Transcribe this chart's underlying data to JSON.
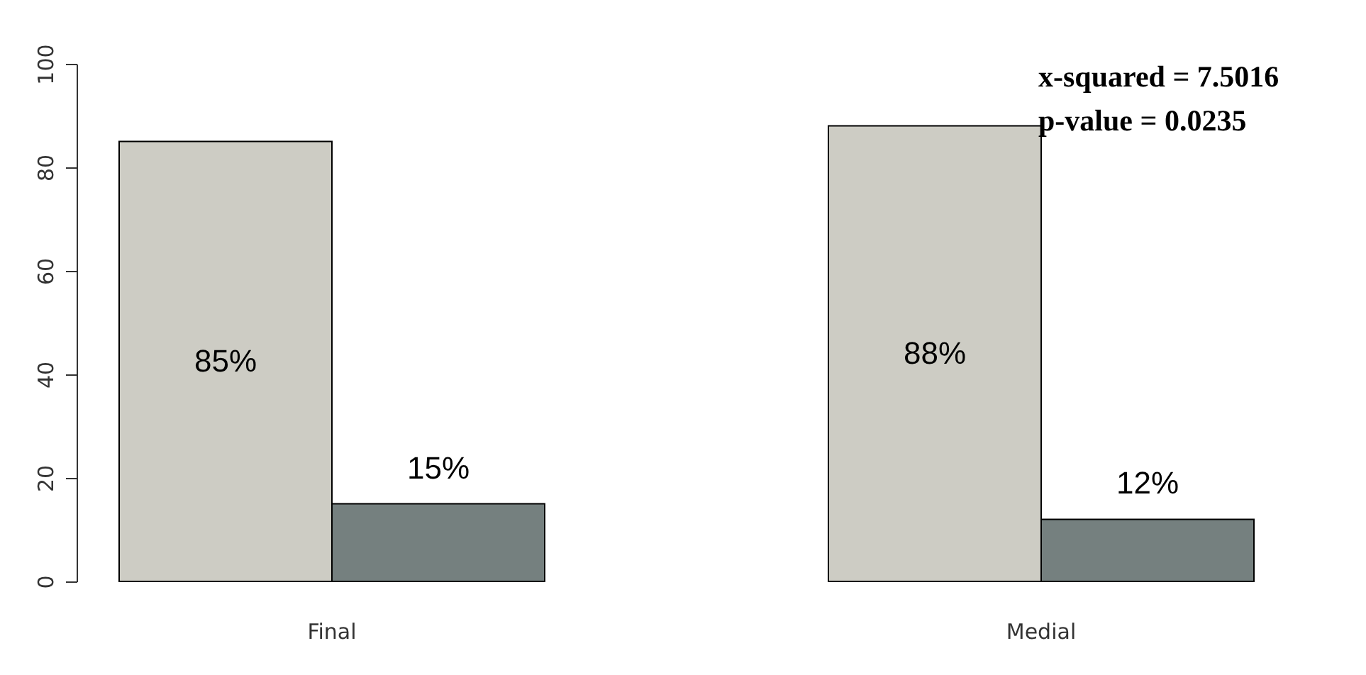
{
  "chart_data": {
    "type": "bar",
    "categories": [
      "Final",
      "Medial"
    ],
    "series": [
      {
        "color": "#cdccc4",
        "values": [
          85,
          88
        ],
        "value_labels": [
          "85%",
          "88%"
        ]
      },
      {
        "color": "#75807f",
        "values": [
          15,
          12
        ],
        "value_labels": [
          "15%",
          "12%"
        ]
      }
    ],
    "ylim": [
      0,
      100
    ],
    "yticks": [
      0,
      20,
      40,
      60,
      80,
      100
    ],
    "grid": false,
    "legend": false,
    "annotations": [
      "x-squared = 7.5016",
      "p-value = 0.0235"
    ]
  }
}
